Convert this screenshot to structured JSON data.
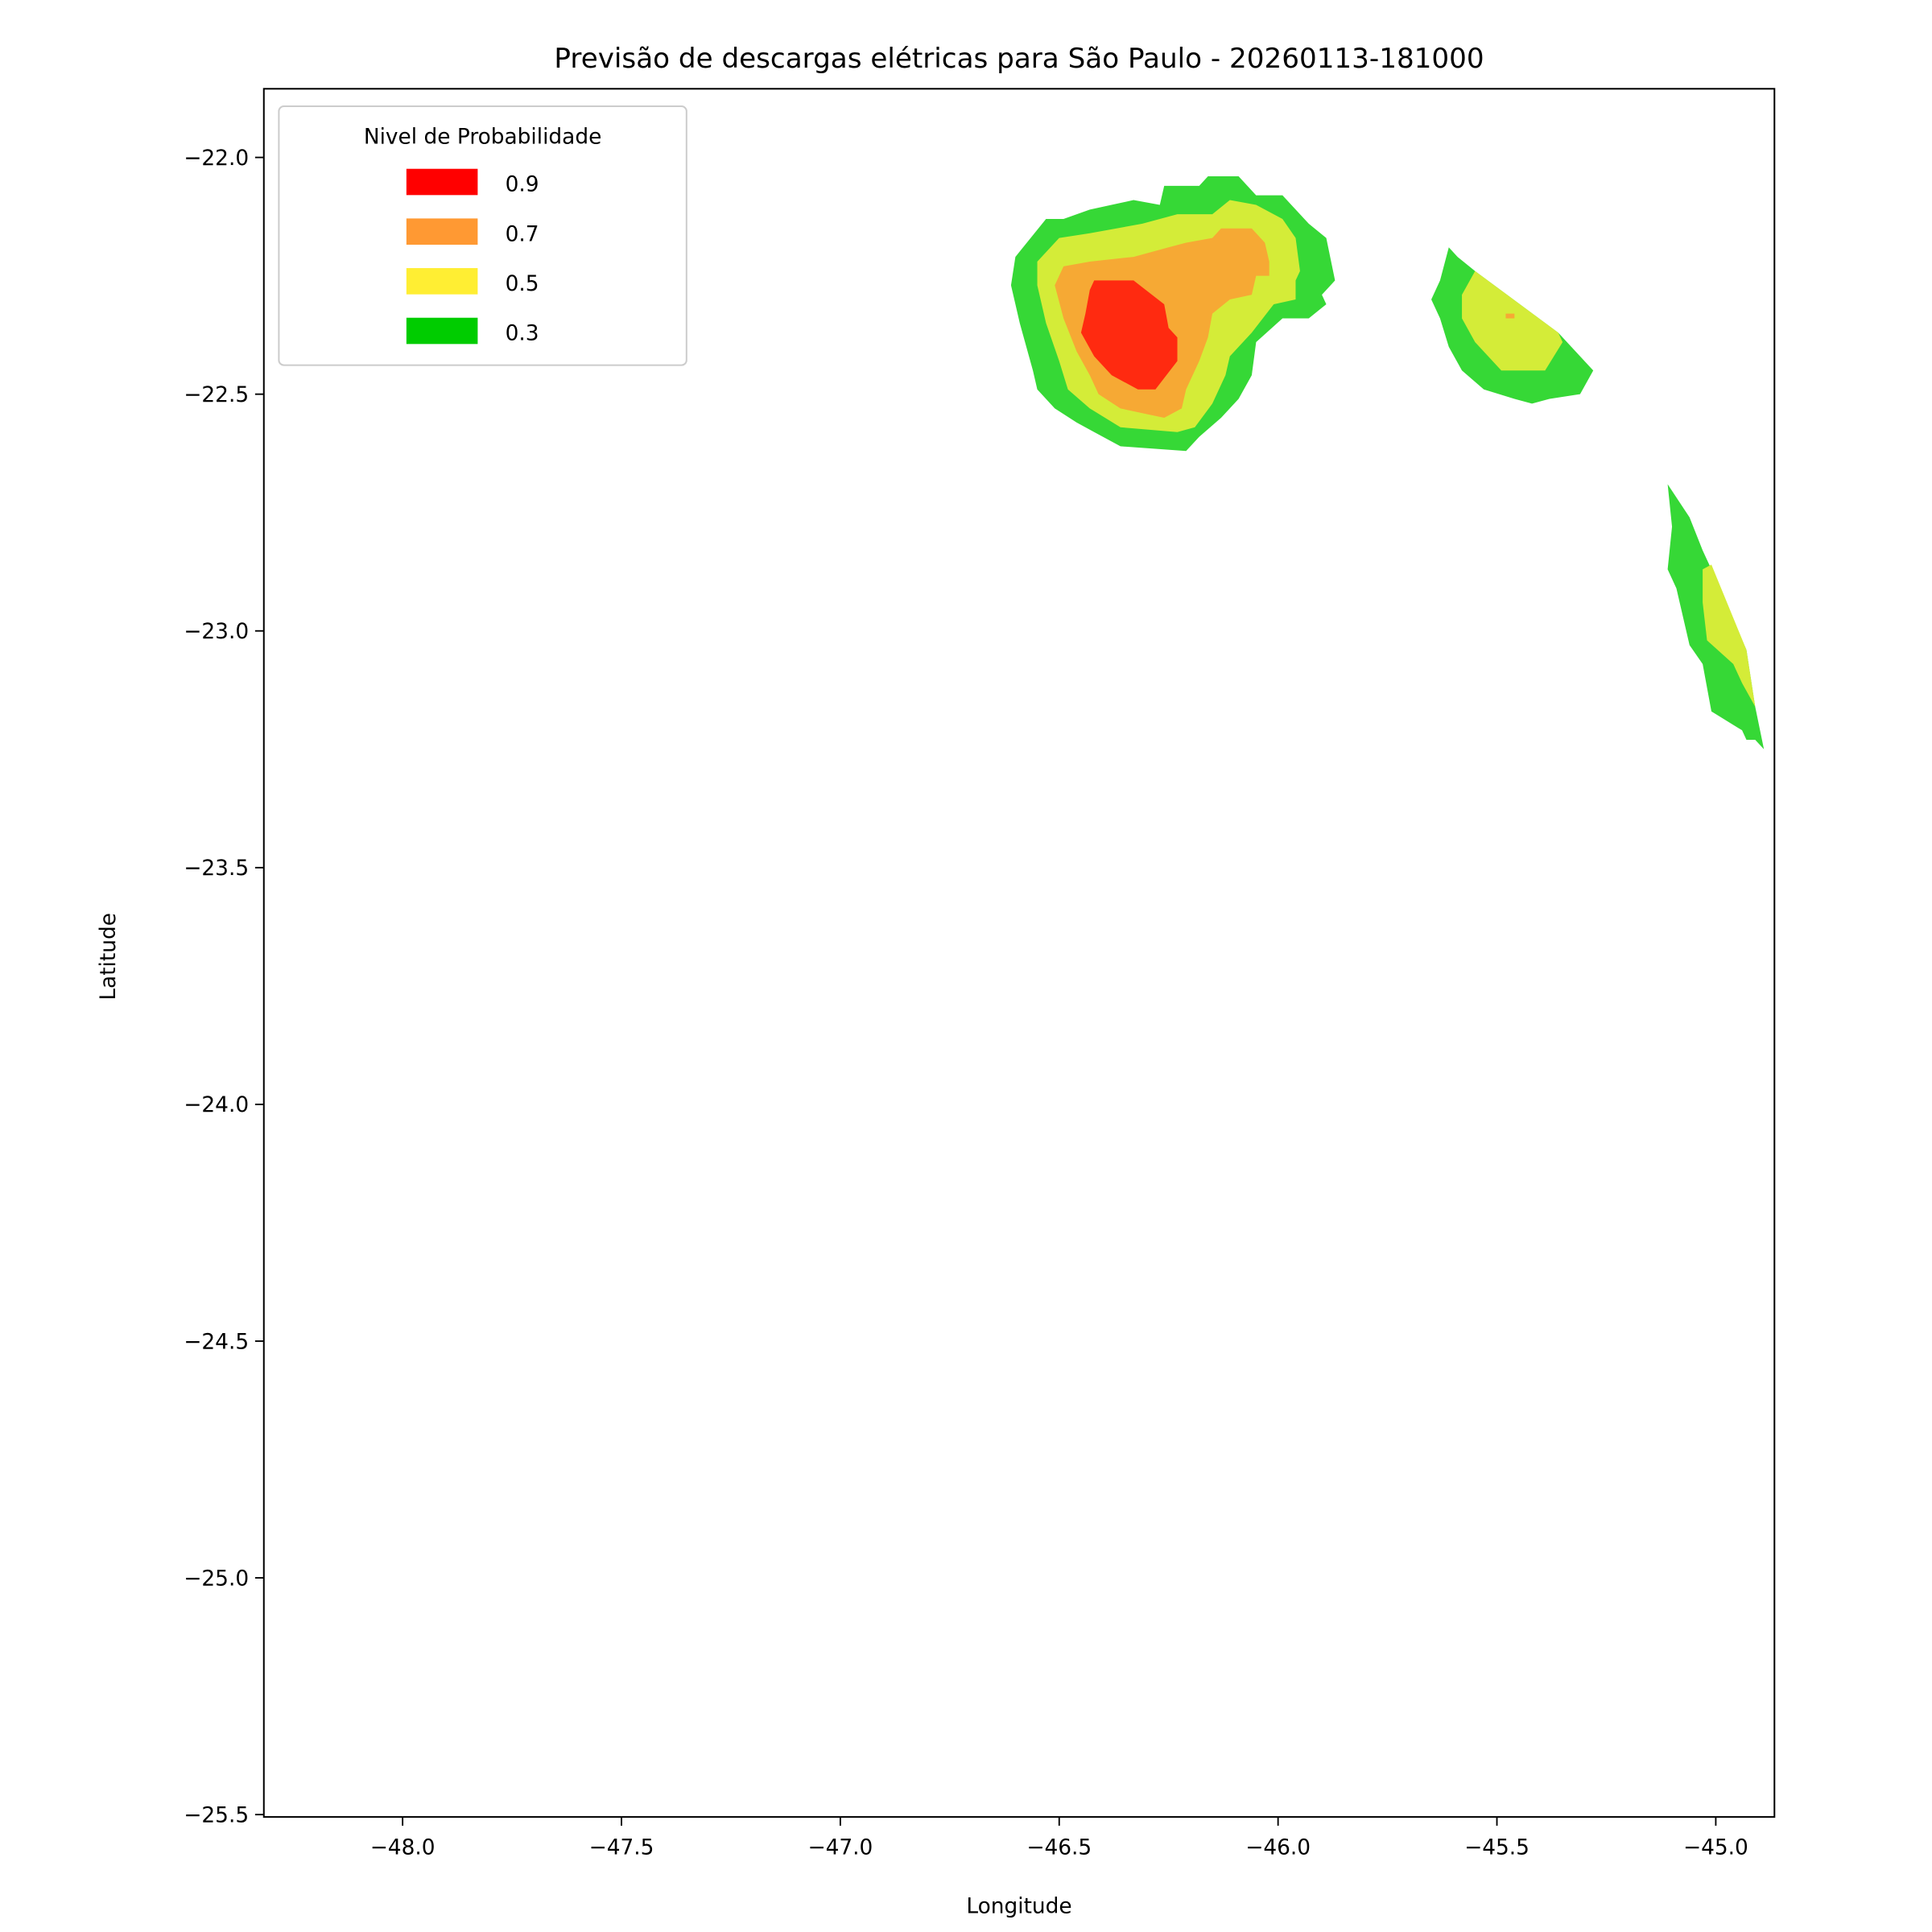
{
  "chart_data": {
    "type": "contour",
    "title": "Previsão de descargas elétricas para São Paulo - 20260113-181000",
    "xlabel": "Longitude",
    "ylabel": "Latitude",
    "xlim": [
      -48.317,
      -44.866
    ],
    "ylim": [
      -25.505,
      -21.855
    ],
    "grid": false,
    "xticks": [
      -48.0,
      -47.5,
      -47.0,
      -46.5,
      -46.0,
      -45.5,
      -45.0
    ],
    "xtick_labels": [
      "−48.0",
      "−47.5",
      "−47.0",
      "−46.5",
      "−46.0",
      "−45.5",
      "−45.0"
    ],
    "yticks": [
      -22.0,
      -22.5,
      -23.0,
      -23.5,
      -24.0,
      -24.5,
      -25.0,
      -25.5
    ],
    "ytick_labels": [
      "−22.0",
      "−22.5",
      "−23.0",
      "−23.5",
      "−24.0",
      "−24.5",
      "−25.0",
      "−25.5"
    ],
    "legend": {
      "title": "Nivel de Probabilidade",
      "placement": "upper-left",
      "entries": [
        {
          "label": "0.9",
          "color": "#ff0000"
        },
        {
          "label": "0.7",
          "color": "#ff9933"
        },
        {
          "label": "0.5",
          "color": "#ffee33"
        },
        {
          "label": "0.3",
          "color": "#00cc00"
        }
      ]
    },
    "fill_colors": {
      "0.3": "#36d836",
      "0.5": "#d4ec38",
      "0.7": "#f6a934",
      "0.9": "#ff2a10"
    },
    "regions": [
      {
        "level": "0.3",
        "points": [
          [
            -46.6,
            -22.21
          ],
          [
            -46.53,
            -22.13
          ],
          [
            -46.49,
            -22.13
          ],
          [
            -46.43,
            -22.11
          ],
          [
            -46.33,
            -22.09
          ],
          [
            -46.27,
            -22.1
          ],
          [
            -46.26,
            -22.06
          ],
          [
            -46.18,
            -22.06
          ],
          [
            -46.16,
            -22.04
          ],
          [
            -46.09,
            -22.04
          ],
          [
            -46.05,
            -22.08
          ],
          [
            -45.99,
            -22.08
          ],
          [
            -45.93,
            -22.14
          ],
          [
            -45.89,
            -22.17
          ],
          [
            -45.87,
            -22.26
          ],
          [
            -45.9,
            -22.29
          ],
          [
            -45.89,
            -22.31
          ],
          [
            -45.93,
            -22.34
          ],
          [
            -45.99,
            -22.34
          ],
          [
            -46.05,
            -22.39
          ],
          [
            -46.06,
            -22.46
          ],
          [
            -46.09,
            -22.51
          ],
          [
            -46.13,
            -22.55
          ],
          [
            -46.18,
            -22.59
          ],
          [
            -46.21,
            -22.62
          ],
          [
            -46.36,
            -22.61
          ],
          [
            -46.42,
            -22.58
          ],
          [
            -46.46,
            -22.56
          ],
          [
            -46.51,
            -22.53
          ],
          [
            -46.55,
            -22.49
          ],
          [
            -46.56,
            -22.45
          ],
          [
            -46.59,
            -22.35
          ],
          [
            -46.61,
            -22.27
          ]
        ]
      },
      {
        "level": "0.5",
        "points": [
          [
            -46.55,
            -22.22
          ],
          [
            -46.5,
            -22.17
          ],
          [
            -46.43,
            -22.16
          ],
          [
            -46.31,
            -22.14
          ],
          [
            -46.23,
            -22.12
          ],
          [
            -46.15,
            -22.12
          ],
          [
            -46.11,
            -22.09
          ],
          [
            -46.05,
            -22.1
          ],
          [
            -45.99,
            -22.13
          ],
          [
            -45.96,
            -22.17
          ],
          [
            -45.95,
            -22.24
          ],
          [
            -45.96,
            -22.26
          ],
          [
            -45.96,
            -22.3
          ],
          [
            -46.01,
            -22.31
          ],
          [
            -46.06,
            -22.37
          ],
          [
            -46.11,
            -22.42
          ],
          [
            -46.12,
            -22.46
          ],
          [
            -46.15,
            -22.52
          ],
          [
            -46.19,
            -22.57
          ],
          [
            -46.23,
            -22.58
          ],
          [
            -46.36,
            -22.57
          ],
          [
            -46.43,
            -22.53
          ],
          [
            -46.48,
            -22.49
          ],
          [
            -46.5,
            -22.43
          ],
          [
            -46.53,
            -22.35
          ],
          [
            -46.55,
            -22.27
          ]
        ]
      },
      {
        "level": "0.7",
        "points": [
          [
            -46.51,
            -22.27
          ],
          [
            -46.49,
            -22.23
          ],
          [
            -46.43,
            -22.22
          ],
          [
            -46.33,
            -22.21
          ],
          [
            -46.25,
            -22.19
          ],
          [
            -46.21,
            -22.18
          ],
          [
            -46.15,
            -22.17
          ],
          [
            -46.13,
            -22.15
          ],
          [
            -46.06,
            -22.15
          ],
          [
            -46.03,
            -22.18
          ],
          [
            -46.02,
            -22.22
          ],
          [
            -46.02,
            -22.25
          ],
          [
            -46.05,
            -22.25
          ],
          [
            -46.06,
            -22.29
          ],
          [
            -46.11,
            -22.3
          ],
          [
            -46.15,
            -22.33
          ],
          [
            -46.16,
            -22.38
          ],
          [
            -46.18,
            -22.43
          ],
          [
            -46.21,
            -22.49
          ],
          [
            -46.22,
            -22.53
          ],
          [
            -46.26,
            -22.55
          ],
          [
            -46.31,
            -22.54
          ],
          [
            -46.36,
            -22.53
          ],
          [
            -46.41,
            -22.5
          ],
          [
            -46.43,
            -22.46
          ],
          [
            -46.46,
            -22.41
          ],
          [
            -46.49,
            -22.34
          ]
        ]
      },
      {
        "level": "0.9",
        "points": [
          [
            -46.43,
            -22.28
          ],
          [
            -46.42,
            -22.26
          ],
          [
            -46.33,
            -22.26
          ],
          [
            -46.26,
            -22.31
          ],
          [
            -46.25,
            -22.36
          ],
          [
            -46.23,
            -22.38
          ],
          [
            -46.23,
            -22.43
          ],
          [
            -46.28,
            -22.49
          ],
          [
            -46.32,
            -22.49
          ],
          [
            -46.38,
            -22.46
          ],
          [
            -46.42,
            -22.42
          ],
          [
            -46.45,
            -22.37
          ],
          [
            -46.44,
            -22.33
          ]
        ]
      },
      {
        "level": "0.3",
        "points": [
          [
            -45.61,
            -22.19
          ],
          [
            -45.59,
            -22.21
          ],
          [
            -45.55,
            -22.24
          ],
          [
            -45.36,
            -22.37
          ],
          [
            -45.28,
            -22.45
          ],
          [
            -45.31,
            -22.5
          ],
          [
            -45.38,
            -22.51
          ],
          [
            -45.42,
            -22.52
          ],
          [
            -45.46,
            -22.51
          ],
          [
            -45.53,
            -22.49
          ],
          [
            -45.58,
            -22.45
          ],
          [
            -45.61,
            -22.4
          ],
          [
            -45.63,
            -22.34
          ],
          [
            -45.65,
            -22.3
          ],
          [
            -45.63,
            -22.26
          ]
        ]
      },
      {
        "level": "0.5",
        "points": [
          [
            -45.55,
            -22.24
          ],
          [
            -45.36,
            -22.37
          ],
          [
            -45.35,
            -22.39
          ],
          [
            -45.39,
            -22.45
          ],
          [
            -45.49,
            -22.45
          ],
          [
            -45.55,
            -22.39
          ],
          [
            -45.58,
            -22.34
          ],
          [
            -45.58,
            -22.29
          ]
        ]
      },
      {
        "level": "0.7",
        "points": [
          [
            -45.48,
            -22.33
          ],
          [
            -45.46,
            -22.33
          ],
          [
            -45.46,
            -22.34
          ],
          [
            -45.48,
            -22.34
          ]
        ]
      },
      {
        "level": "0.3",
        "points": [
          [
            -45.11,
            -22.69
          ],
          [
            -45.06,
            -22.76
          ],
          [
            -45.03,
            -22.83
          ],
          [
            -45.01,
            -22.87
          ],
          [
            -44.93,
            -23.04
          ],
          [
            -44.91,
            -23.16
          ],
          [
            -44.89,
            -23.25
          ],
          [
            -44.91,
            -23.23
          ],
          [
            -44.93,
            -23.23
          ],
          [
            -44.94,
            -23.21
          ],
          [
            -45.01,
            -23.17
          ],
          [
            -45.03,
            -23.07
          ],
          [
            -45.06,
            -23.03
          ],
          [
            -45.09,
            -22.91
          ],
          [
            -45.11,
            -22.87
          ],
          [
            -45.1,
            -22.78
          ]
        ]
      },
      {
        "level": "0.5",
        "points": [
          [
            -45.03,
            -22.87
          ],
          [
            -45.01,
            -22.86
          ],
          [
            -44.93,
            -23.04
          ],
          [
            -44.91,
            -23.16
          ],
          [
            -44.94,
            -23.11
          ],
          [
            -44.96,
            -23.07
          ],
          [
            -45.02,
            -23.02
          ],
          [
            -45.03,
            -22.94
          ]
        ]
      }
    ]
  }
}
